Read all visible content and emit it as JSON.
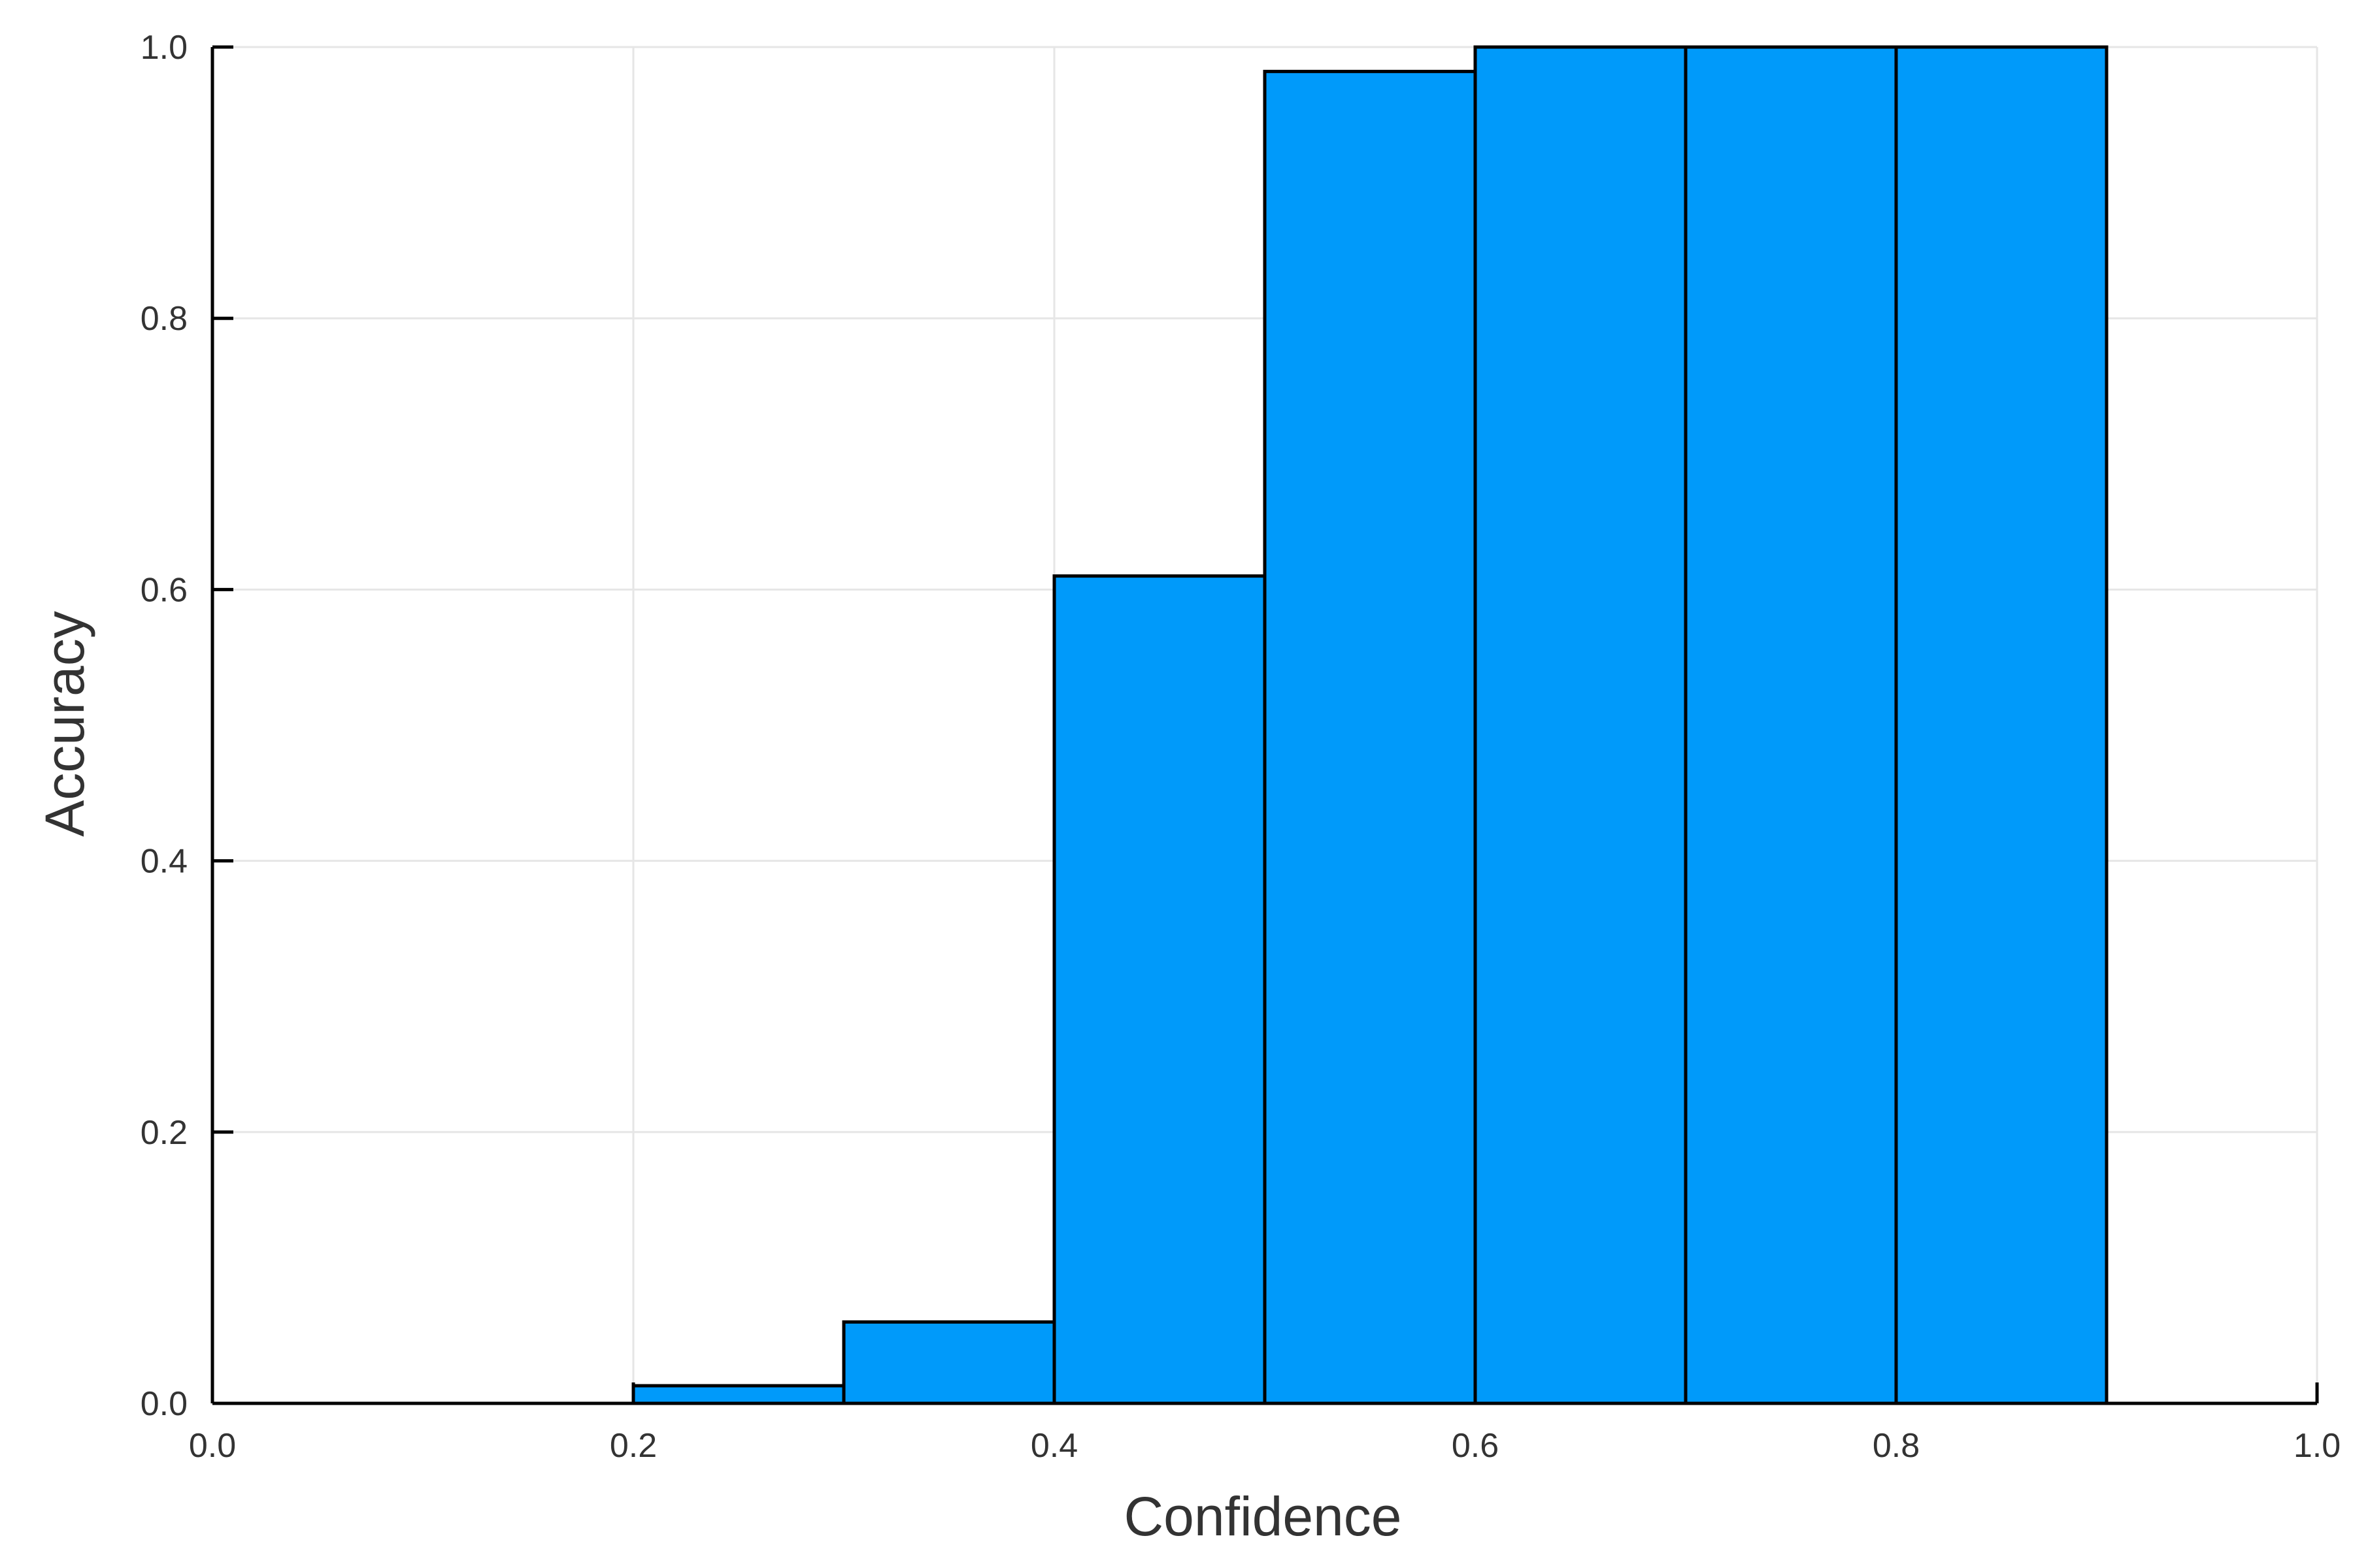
{
  "chart_data": {
    "type": "bar",
    "xlabel": "Confidence",
    "ylabel": "Accuracy",
    "xlim": [
      0.0,
      1.0
    ],
    "ylim": [
      0.0,
      1.0
    ],
    "x_ticks": [
      "0.0",
      "0.2",
      "0.4",
      "0.6",
      "0.8",
      "1.0"
    ],
    "y_ticks": [
      "0.0",
      "0.2",
      "0.4",
      "0.6",
      "0.8",
      "1.0"
    ],
    "grid": true,
    "legend": "none",
    "bins": [
      {
        "x0": 0.2,
        "x1": 0.3,
        "value": 0.013
      },
      {
        "x0": 0.3,
        "x1": 0.4,
        "value": 0.06
      },
      {
        "x0": 0.4,
        "x1": 0.5,
        "value": 0.61
      },
      {
        "x0": 0.5,
        "x1": 0.6,
        "value": 0.982
      },
      {
        "x0": 0.6,
        "x1": 0.7,
        "value": 1.0
      },
      {
        "x0": 0.7,
        "x1": 0.8,
        "value": 1.0
      },
      {
        "x0": 0.8,
        "x1": 0.9,
        "value": 1.0
      }
    ],
    "colors": {
      "bar_fill": "#009AFA",
      "bar_stroke": "#000000",
      "grid": "#E6E6E6",
      "axis": "#000000",
      "text": "#333333"
    }
  }
}
